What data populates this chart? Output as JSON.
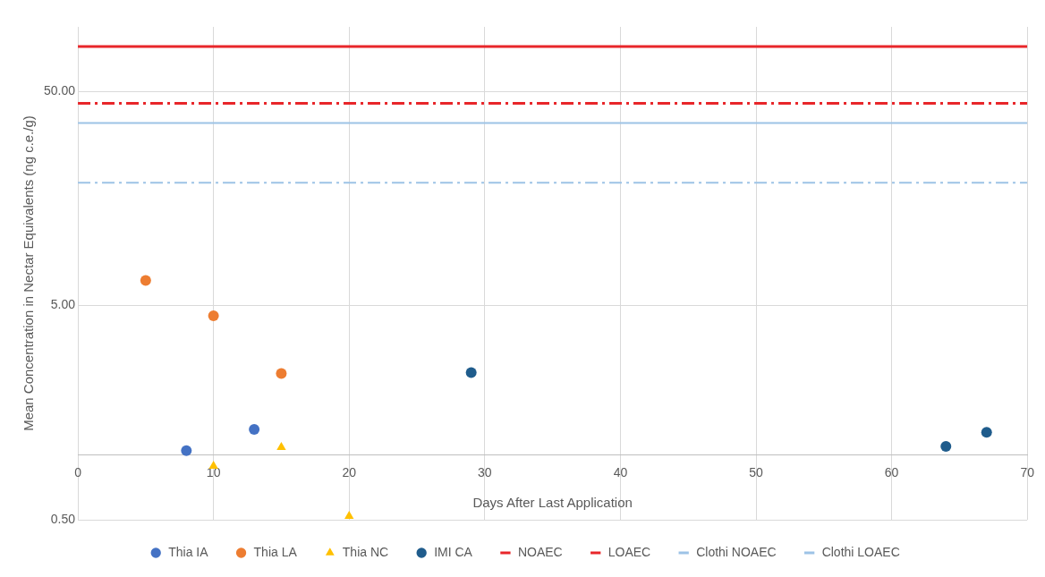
{
  "chart_data": {
    "type": "scatter",
    "xlabel": "Days After Last Application",
    "ylabel": "Mean Concentration in Nectar Equivalents (ng c.e./g)",
    "log": "y",
    "xlim": [
      0,
      70
    ],
    "xticks": [
      0,
      10,
      20,
      30,
      40,
      50,
      60,
      70
    ],
    "ylim": [
      0.5,
      100
    ],
    "yticks": [
      {
        "value": 0.5,
        "label": "0.50"
      },
      {
        "value": 5,
        "label": "5.00"
      },
      {
        "value": 50,
        "label": "50.00"
      }
    ],
    "grid": true,
    "legend": "bottom",
    "marker": "circle",
    "series": [
      {
        "name": "Thia IA",
        "color": "#4472c4",
        "x": [
          8,
          13
        ],
        "values": [
          1.05,
          1.32
        ]
      },
      {
        "name": "Thia LA",
        "color": "#ed7d31",
        "x": [
          5,
          10,
          15
        ],
        "values": [
          6.55,
          4.48,
          2.41
        ]
      },
      {
        "name": "Thia NC",
        "color": "#ffc000",
        "marker": "triangle",
        "x": [
          10,
          15,
          20
        ],
        "values": [
          0.89,
          1.09,
          0.52
        ]
      },
      {
        "name": "IMI CA",
        "color": "#1f5c8c",
        "x": [
          29,
          64,
          67
        ],
        "values": [
          2.43,
          1.1,
          1.28
        ]
      },
      {
        "name": "NOAEC",
        "type": "line",
        "color": "#e8262a",
        "line_style": "dashed",
        "marker": "none",
        "x": [
          0,
          70
        ],
        "values": [
          43.9,
          43.9
        ]
      },
      {
        "name": "LOAEC",
        "type": "line",
        "color": "#e8262a",
        "line_style": "solid",
        "marker": "none",
        "x": [
          0,
          70
        ],
        "values": [
          80.9,
          80.9
        ]
      },
      {
        "name": "Clothi NOAEC",
        "type": "line",
        "color": "#9dc3e6",
        "line_style": "dashed",
        "marker": "none",
        "x": [
          0,
          70
        ],
        "values": [
          18.7,
          18.7
        ]
      },
      {
        "name": "Clothi LOAEC",
        "type": "line",
        "color": "#9dc3e6",
        "line_style": "solid",
        "marker": "none",
        "x": [
          0,
          70
        ],
        "values": [
          35.6,
          35.6
        ]
      }
    ]
  }
}
